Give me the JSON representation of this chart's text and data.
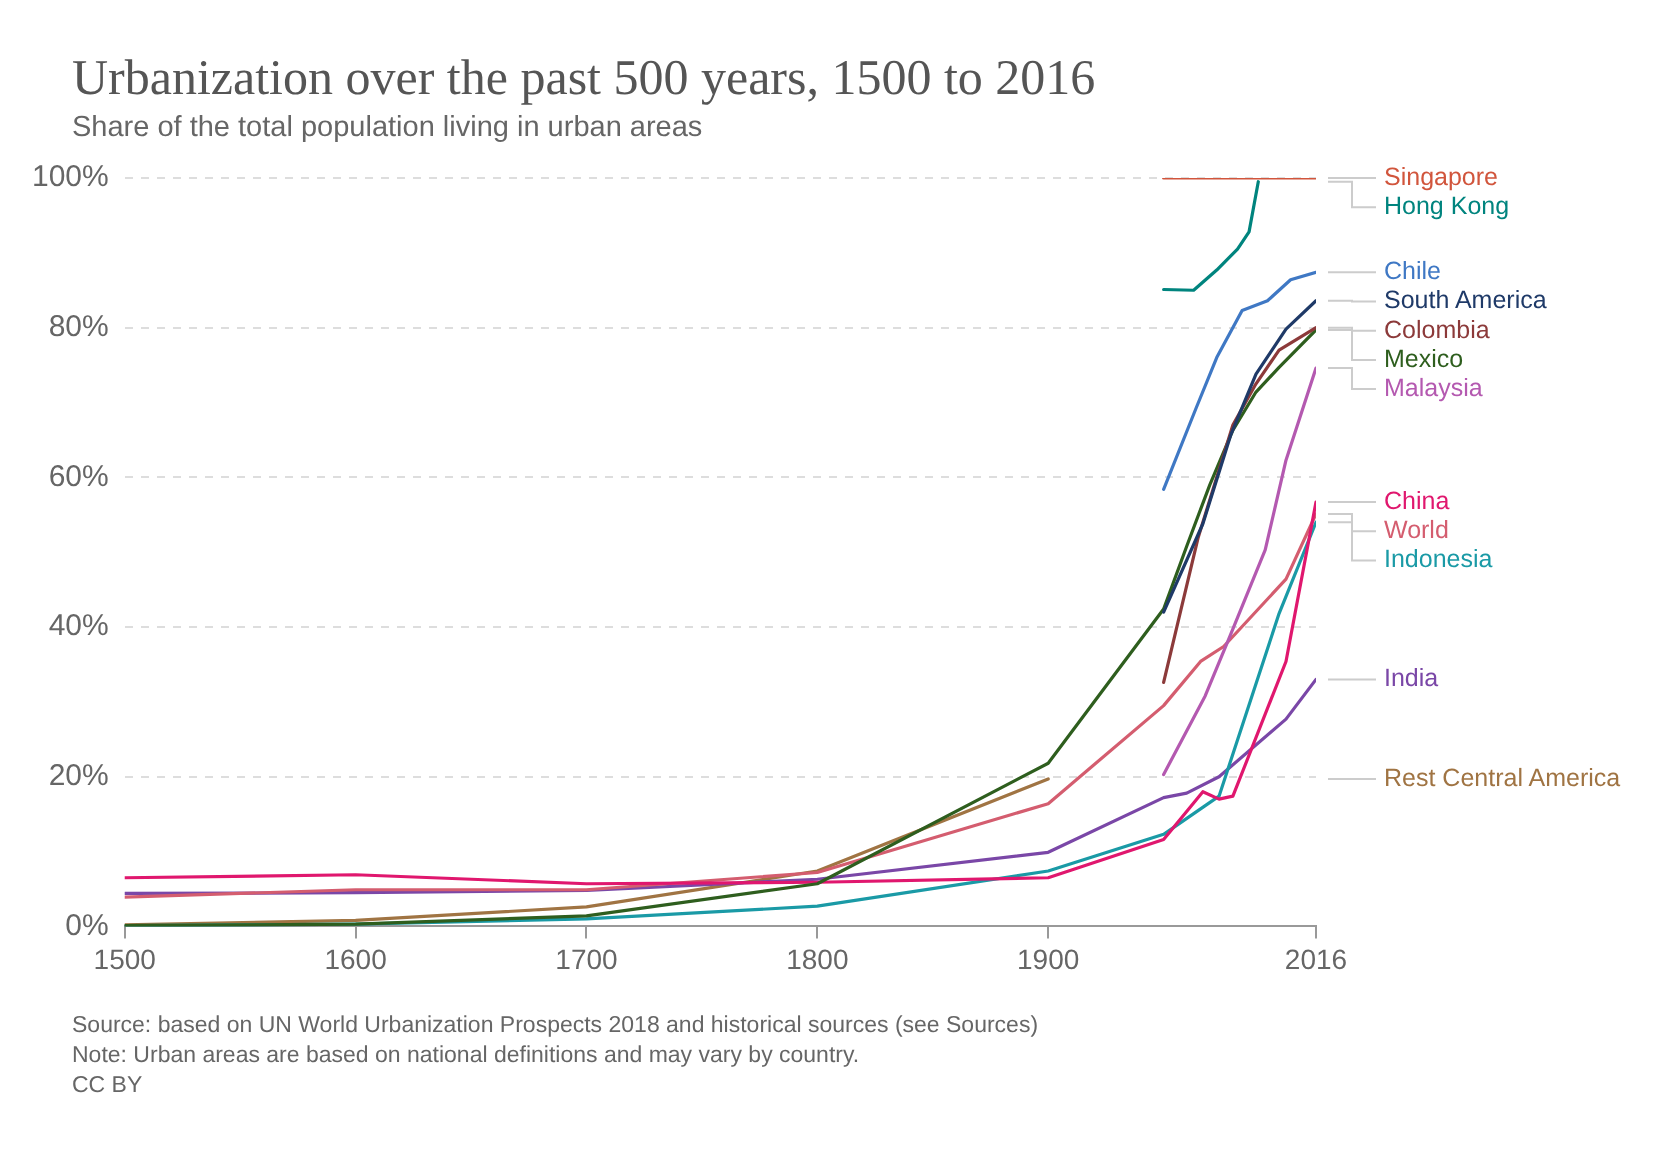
{
  "chart_data": {
    "type": "line",
    "title": "Urbanization over the past 500 years, 1500 to 2016",
    "subtitle": "Share of the total population living in urban areas",
    "annotations": [
      "Source: based on UN World Urbanization Prospects 2018 and historical sources (see Sources)",
      "Note: Urban areas are based on national definitions and may vary by country.",
      "CC BY"
    ],
    "xlim": [
      1500,
      2016
    ],
    "xticks": [
      1500,
      1600,
      1700,
      1800,
      1900,
      2016
    ],
    "ylim": [
      0,
      100
    ],
    "yticks": [
      {
        "value": 0,
        "label": "0%"
      },
      {
        "value": 20,
        "label": "20%"
      },
      {
        "value": 40,
        "label": "40%"
      },
      {
        "value": 60,
        "label": "60%"
      },
      {
        "value": 80,
        "label": "80%"
      },
      {
        "value": 100,
        "label": "100%"
      }
    ],
    "grid": "y",
    "legend": "right",
    "marker": "none",
    "line_style": "solid",
    "series": [
      {
        "name": "Singapore",
        "color": "#d1553c",
        "x": [
          1950,
          2016
        ],
        "values": [
          100,
          100
        ]
      },
      {
        "name": "Hong Kong",
        "color": "#00847e",
        "x": [
          1950,
          1963,
          1973,
          1982,
          1987,
          1991
        ],
        "values": [
          85.1,
          85,
          87.7,
          90.5,
          92.8,
          99.5
        ]
      },
      {
        "name": "Chile",
        "color": "#3f78c4",
        "x": [
          1950,
          1964,
          1973,
          1984,
          1995,
          2005,
          2016
        ],
        "values": [
          58.4,
          69.2,
          76,
          82.3,
          83.6,
          86.4,
          87.4
        ]
      },
      {
        "name": "South America",
        "color": "#1f3a68",
        "x": [
          1950,
          1967,
          1979,
          1990,
          2003,
          2016
        ],
        "values": [
          42,
          53.8,
          65.6,
          73.8,
          79.8,
          83.6
        ]
      },
      {
        "name": "Colombia",
        "color": "#8c3a3a",
        "x": [
          1950,
          1965,
          1980,
          1990,
          2000,
          2016
        ],
        "values": [
          32.6,
          52,
          67,
          72.5,
          77,
          80
        ]
      },
      {
        "name": "Mexico",
        "color": "#2e5e1e",
        "x": [
          1500,
          1600,
          1700,
          1800,
          1900,
          1950,
          1960,
          1970,
          1980,
          1990,
          2000,
          2016
        ],
        "values": [
          0.1,
          0.3,
          1.4,
          5.7,
          21.8,
          42.4,
          50.8,
          59,
          66.3,
          71.4,
          74.7,
          79.7
        ]
      },
      {
        "name": "Malaysia",
        "color": "#b459b0",
        "x": [
          1950,
          1968,
          1979,
          1994,
          2003,
          2016
        ],
        "values": [
          20.3,
          30.8,
          39,
          50.3,
          62.3,
          74.6
        ]
      },
      {
        "name": "China",
        "color": "#e0176e",
        "x": [
          1500,
          1600,
          1700,
          1800,
          1900,
          1950,
          1967,
          1974,
          1980,
          2003,
          2016
        ],
        "values": [
          6.5,
          6.9,
          5.7,
          5.9,
          6.5,
          11.6,
          18,
          17,
          17.4,
          35.4,
          56.7
        ]
      },
      {
        "name": "World",
        "color": "#d45d6f",
        "x": [
          1500,
          1600,
          1700,
          1800,
          1900,
          1950,
          1966,
          1976,
          2003,
          2016
        ],
        "values": [
          3.9,
          4.9,
          4.9,
          7.2,
          16.4,
          29.5,
          35.4,
          37.4,
          46.4,
          55.1
        ]
      },
      {
        "name": "Indonesia",
        "color": "#1a9aa6",
        "x": [
          1500,
          1600,
          1700,
          1800,
          1900,
          1950,
          1974,
          2000,
          2016
        ],
        "values": [
          0.1,
          0.3,
          1,
          2.7,
          7.4,
          12.3,
          17.4,
          41.8,
          54
        ]
      },
      {
        "name": "India",
        "color": "#7a47a7",
        "x": [
          1500,
          1600,
          1700,
          1800,
          1900,
          1950,
          1960,
          1974,
          2003,
          2016
        ],
        "values": [
          4.4,
          4.5,
          4.8,
          6.3,
          9.9,
          17.2,
          17.8,
          20,
          27.7,
          33
        ]
      },
      {
        "name": "Rest Central America",
        "color": "#a07443",
        "x": [
          1500,
          1600,
          1700,
          1800,
          1900
        ],
        "values": [
          0.2,
          0.8,
          2.6,
          7.4,
          19.7
        ]
      }
    ]
  }
}
